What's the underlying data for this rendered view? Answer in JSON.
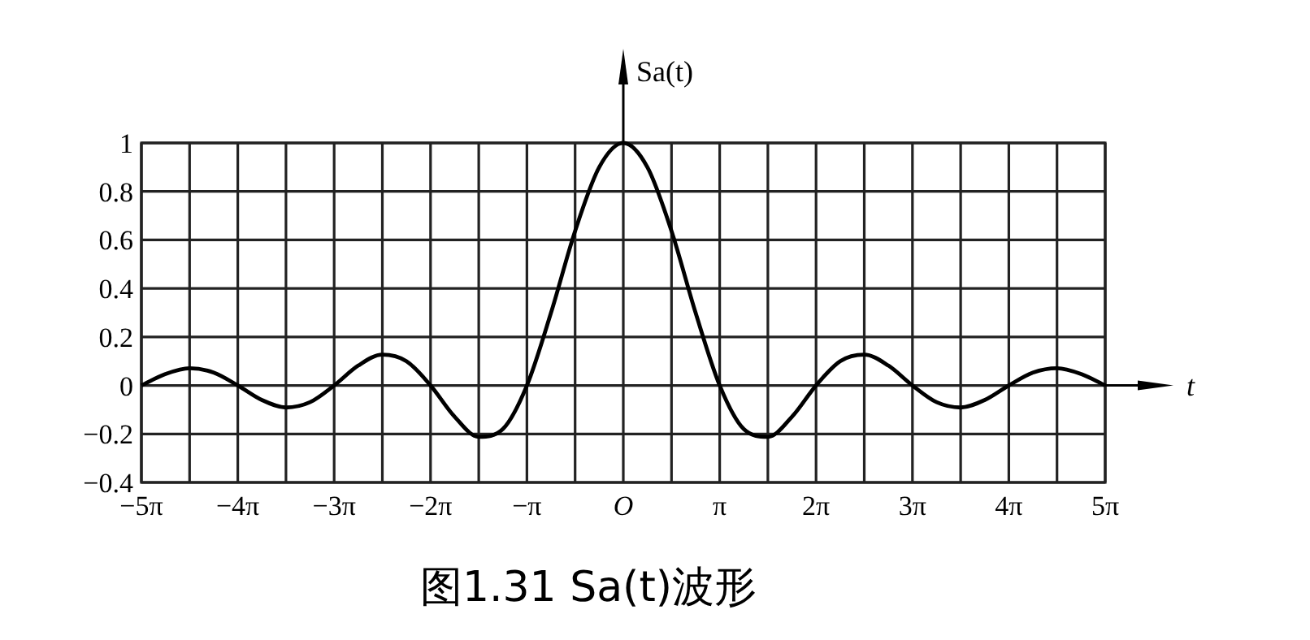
{
  "chart_data": {
    "type": "line",
    "title": "图1.31 Sa(t)波形",
    "xlabel": "t",
    "ylabel": "Sa(t)",
    "x": [
      -15.708,
      -14.923,
      -14.137,
      -13.352,
      -12.566,
      -11.781,
      -10.996,
      -10.21,
      -9.425,
      -8.639,
      -7.854,
      -7.069,
      -6.283,
      -5.498,
      -4.712,
      -3.927,
      -3.142,
      -2.356,
      -1.571,
      -0.785,
      0,
      0.785,
      1.571,
      2.356,
      3.142,
      3.927,
      4.712,
      5.498,
      6.283,
      7.069,
      7.854,
      8.639,
      9.425,
      10.21,
      10.996,
      11.781,
      12.566,
      13.352,
      14.137,
      14.923,
      15.708
    ],
    "series": [
      {
        "color": "#000000",
        "values": [
          0,
          0.047,
          0.071,
          0.053,
          0,
          -0.06,
          -0.091,
          -0.069,
          0,
          0.082,
          0.127,
          0.1,
          0,
          -0.129,
          -0.212,
          -0.18,
          0,
          0.3,
          0.637,
          0.9,
          1,
          0.9,
          0.637,
          0.3,
          0,
          -0.18,
          -0.212,
          -0.129,
          0,
          0.1,
          0.127,
          0.082,
          0,
          -0.069,
          -0.091,
          -0.06,
          0,
          0.053,
          0.071,
          0.047,
          0
        ]
      }
    ],
    "xlim": [
      -15.708,
      15.708
    ],
    "ylim": [
      -0.4,
      1
    ],
    "xticks": [
      {
        "value": -15.708,
        "label": "−5π"
      },
      {
        "value": -14.137,
        "label": null
      },
      {
        "value": -12.566,
        "label": "−4π"
      },
      {
        "value": -10.996,
        "label": null
      },
      {
        "value": -9.425,
        "label": "−3π"
      },
      {
        "value": -7.854,
        "label": null
      },
      {
        "value": -6.283,
        "label": "−2π"
      },
      {
        "value": -4.712,
        "label": null
      },
      {
        "value": -3.142,
        "label": "−π"
      },
      {
        "value": -1.571,
        "label": null
      },
      {
        "value": 0,
        "label": "O"
      },
      {
        "value": 1.571,
        "label": null
      },
      {
        "value": 3.142,
        "label": "π"
      },
      {
        "value": 4.712,
        "label": null
      },
      {
        "value": 6.283,
        "label": "2π"
      },
      {
        "value": 7.854,
        "label": null
      },
      {
        "value": 9.425,
        "label": "3π"
      },
      {
        "value": 10.996,
        "label": null
      },
      {
        "value": 12.566,
        "label": "4π"
      },
      {
        "value": 14.137,
        "label": null
      },
      {
        "value": 15.708,
        "label": "5π"
      }
    ],
    "yticks": [
      {
        "value": -0.4,
        "label": "−0.4"
      },
      {
        "value": -0.2,
        "label": "−0.2"
      },
      0,
      0.2,
      0.4,
      0.6,
      0.8,
      1
    ],
    "grid": true,
    "line_style": "solid",
    "marker": "none"
  }
}
